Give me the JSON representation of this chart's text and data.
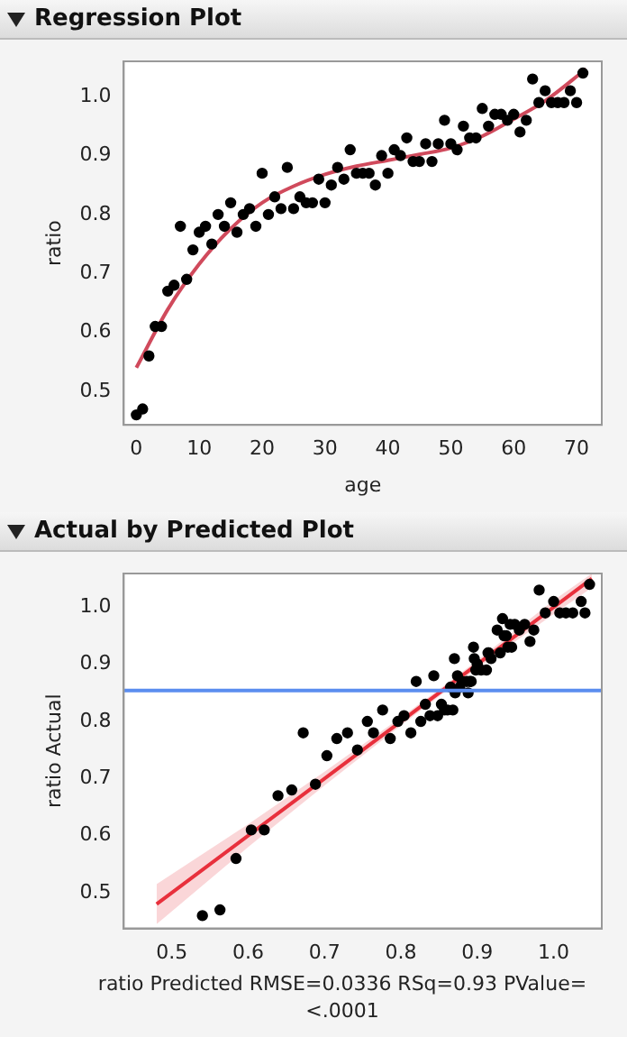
{
  "chart_data": [
    {
      "type": "scatter",
      "title": "Regression Plot",
      "xlabel": "age",
      "ylabel": "ratio",
      "xlim": [
        -2,
        74
      ],
      "xticks": [
        0,
        10,
        20,
        30,
        40,
        50,
        60,
        70
      ],
      "ylim": [
        0.443,
        1.06
      ],
      "yticks": [
        0.5,
        0.6,
        0.7,
        0.8,
        0.9,
        {
          "value": 1,
          "label": "1.0"
        }
      ],
      "grid": false,
      "legend": false,
      "series": [
        {
          "color": "#000000",
          "marker": "circle",
          "x": [
            0,
            1,
            2,
            3,
            4,
            5,
            6,
            7,
            8,
            9,
            10,
            11,
            12,
            13,
            14,
            15,
            16,
            17,
            18,
            19,
            20,
            21,
            22,
            23,
            24,
            25,
            26,
            27,
            28,
            29,
            30,
            31,
            32,
            33,
            34,
            35,
            36,
            37,
            38,
            39,
            40,
            41,
            42,
            43,
            44,
            45,
            46,
            47,
            48,
            49,
            50,
            51,
            52,
            53,
            54,
            55,
            56,
            57,
            58,
            59,
            60,
            61,
            62,
            63,
            64,
            65,
            66,
            67,
            68,
            69,
            70,
            71
          ],
          "values": [
            0.46,
            0.47,
            0.56,
            0.61,
            0.61,
            0.67,
            0.68,
            0.78,
            0.69,
            0.74,
            0.77,
            0.78,
            0.75,
            0.8,
            0.78,
            0.82,
            0.77,
            0.8,
            0.81,
            0.78,
            0.87,
            0.8,
            0.83,
            0.81,
            0.88,
            0.81,
            0.83,
            0.82,
            0.82,
            0.86,
            0.82,
            0.85,
            0.88,
            0.86,
            0.91,
            0.87,
            0.87,
            0.87,
            0.85,
            0.9,
            0.87,
            0.91,
            0.9,
            0.93,
            0.89,
            0.89,
            0.92,
            0.89,
            0.92,
            0.96,
            0.92,
            0.91,
            0.95,
            0.93,
            0.93,
            0.98,
            0.95,
            0.97,
            0.97,
            0.96,
            0.97,
            0.94,
            0.96,
            1.03,
            0.99,
            1.01,
            0.99,
            0.99,
            0.99,
            1.01,
            0.99,
            1.04
          ]
        },
        {
          "type": "line",
          "marker": "none",
          "color": "#d04a5c",
          "x": [
            0,
            5,
            10,
            15,
            20,
            25,
            30,
            35,
            40,
            45,
            50,
            55,
            60,
            65,
            71.5
          ],
          "values": [
            0.54,
            0.639,
            0.716,
            0.776,
            0.82,
            0.848,
            0.868,
            0.882,
            0.892,
            0.902,
            0.913,
            0.933,
            0.962,
            0.993,
            1.047
          ]
        }
      ]
    },
    {
      "type": "scatter",
      "title": "Actual by Predicted Plot",
      "xlabel": "ratio Predicted RMSE=0.0336 RSq=0.93 PValue=<.0001",
      "ylabel": "ratio Actual",
      "xlim": [
        0.437,
        1.063
      ],
      "xticks": [
        0.5,
        0.6,
        0.7,
        0.8,
        0.9,
        {
          "value": 1,
          "label": "1.0"
        }
      ],
      "ylim": [
        0.4375,
        1.059
      ],
      "yticks": [
        0.5,
        0.6,
        0.7,
        0.8,
        0.9,
        {
          "value": 1,
          "label": "1.0"
        }
      ],
      "grid": false,
      "legend": false,
      "ref_lines": [
        {
          "axis": "y",
          "value": 0.854,
          "color": "#5b8def"
        }
      ],
      "series": [
        {
          "color": "#000000",
          "marker": "circle",
          "x": [
            0.54,
            0.563,
            0.584,
            0.604,
            0.621,
            0.639,
            0.657,
            0.672,
            0.688,
            0.703,
            0.716,
            0.73,
            0.743,
            0.756,
            0.764,
            0.776,
            0.786,
            0.796,
            0.804,
            0.813,
            0.82,
            0.826,
            0.832,
            0.838,
            0.843,
            0.848,
            0.853,
            0.857,
            0.861,
            0.865,
            0.868,
            0.871,
            0.874,
            0.877,
            0.87,
            0.88,
            0.89,
            0.886,
            0.888,
            0.9,
            0.892,
            0.896,
            0.9,
            0.895,
            0.905,
            0.898,
            0.915,
            0.912,
            0.914,
            0.926,
            0.93,
            0.918,
            0.935,
            0.945,
            0.94,
            0.933,
            0.938,
            0.943,
            0.949,
            0.955,
            0.962,
            0.969,
            0.974,
            0.981,
            0.989,
            1.0,
            1.008,
            1.016,
            1.025,
            1.036,
            1.041,
            1.047
          ],
          "values": [
            0.46,
            0.47,
            0.56,
            0.61,
            0.61,
            0.67,
            0.68,
            0.78,
            0.69,
            0.74,
            0.77,
            0.78,
            0.75,
            0.8,
            0.78,
            0.82,
            0.77,
            0.8,
            0.81,
            0.78,
            0.87,
            0.8,
            0.83,
            0.81,
            0.88,
            0.81,
            0.83,
            0.82,
            0.82,
            0.86,
            0.82,
            0.85,
            0.88,
            0.86,
            0.91,
            0.87,
            0.87,
            0.87,
            0.85,
            0.9,
            0.87,
            0.91,
            0.9,
            0.93,
            0.89,
            0.89,
            0.92,
            0.89,
            0.92,
            0.96,
            0.92,
            0.91,
            0.95,
            0.93,
            0.93,
            0.98,
            0.95,
            0.97,
            0.97,
            0.96,
            0.97,
            0.94,
            0.96,
            1.03,
            0.99,
            1.01,
            0.99,
            0.99,
            0.99,
            1.01,
            0.99,
            1.04
          ]
        },
        {
          "type": "line",
          "marker": "none",
          "color": "#e8303c",
          "x": [
            0.48,
            0.6,
            0.7,
            0.8,
            0.85,
            0.9,
            1.0,
            1.05
          ],
          "values": [
            0.48,
            0.6,
            0.7,
            0.8,
            0.85,
            0.9,
            1.0,
            1.05
          ],
          "lower": [
            0.445,
            0.58,
            0.688,
            0.793,
            0.844,
            0.893,
            0.988,
            1.034
          ],
          "upper": [
            0.515,
            0.62,
            0.712,
            0.807,
            0.856,
            0.907,
            1.012,
            1.059
          ]
        }
      ]
    }
  ]
}
